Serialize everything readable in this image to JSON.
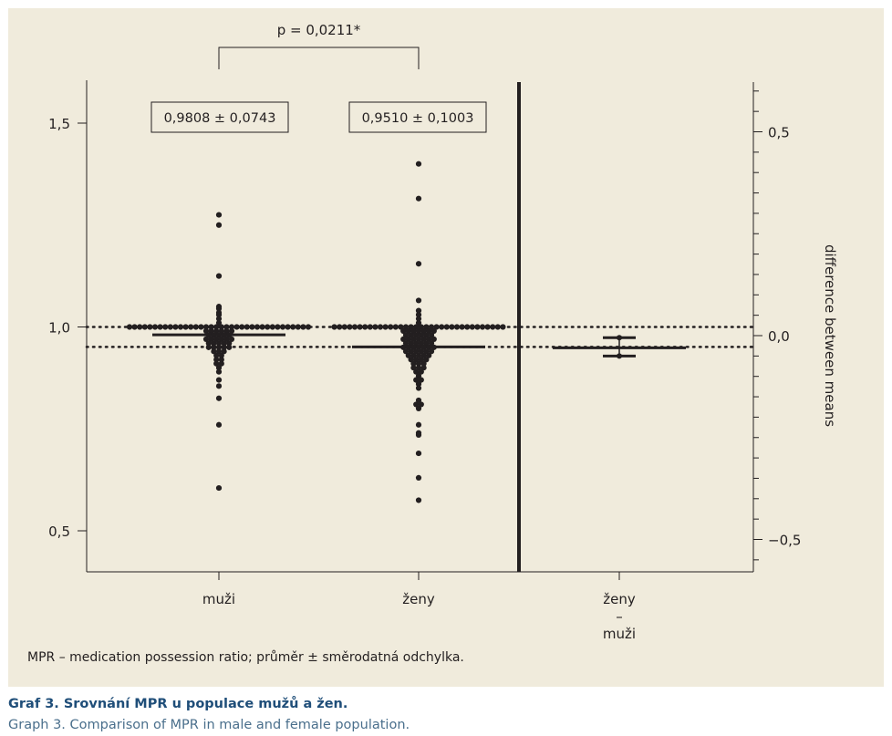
{
  "chart_data": {
    "type": "scatter",
    "significance": "p = 0,0211*",
    "left_axis": {
      "range": [
        0.4,
        1.61
      ],
      "ticks": [
        {
          "value": 0.5,
          "label": "0,5"
        },
        {
          "value": 1.0,
          "label": "1,0"
        },
        {
          "value": 1.5,
          "label": "1,5"
        }
      ]
    },
    "right_axis": {
      "label": "difference between means",
      "range": [
        -0.58,
        0.62
      ],
      "ticks": [
        {
          "value": -0.5,
          "label": "−0,5"
        },
        {
          "value": 0.0,
          "label": "0,0"
        },
        {
          "value": 0.5,
          "label": "0,5"
        }
      ]
    },
    "categories": [
      "muži",
      "ženy",
      "ženy – muži"
    ],
    "groups": [
      {
        "category": "muži",
        "mean_label": "0,9808 ± 0,0743",
        "mean": 0.9808,
        "sd": 0.0743,
        "values": [
          1.275,
          1.25,
          1.125,
          1.05,
          1.045,
          1.035,
          1.03,
          1.02,
          1.01,
          1.0,
          1.0,
          1.0,
          1.0,
          1.0,
          1.0,
          1.0,
          1.0,
          1.0,
          1.0,
          1.0,
          1.0,
          1.0,
          1.0,
          1.0,
          1.0,
          1.0,
          1.0,
          1.0,
          1.0,
          1.0,
          1.0,
          1.0,
          1.0,
          1.0,
          1.0,
          1.0,
          1.0,
          1.0,
          1.0,
          1.0,
          1.0,
          1.0,
          1.0,
          1.0,
          1.0,
          0.99,
          0.99,
          0.99,
          0.99,
          0.99,
          0.99,
          0.98,
          0.98,
          0.98,
          0.98,
          0.98,
          0.97,
          0.97,
          0.97,
          0.97,
          0.97,
          0.97,
          0.96,
          0.96,
          0.96,
          0.96,
          0.96,
          0.95,
          0.95,
          0.95,
          0.95,
          0.95,
          0.94,
          0.94,
          0.94,
          0.93,
          0.93,
          0.92,
          0.92,
          0.91,
          0.91,
          0.9,
          0.89,
          0.87,
          0.855,
          0.825,
          0.76,
          0.605
        ]
      },
      {
        "category": "ženy",
        "mean_label": "0,9510 ± 0,1003",
        "mean": 0.951,
        "sd": 0.1003,
        "values": [
          1.4,
          1.315,
          1.155,
          1.065,
          1.04,
          1.03,
          1.02,
          1.01,
          1.0,
          1.0,
          1.0,
          1.0,
          1.0,
          1.0,
          1.0,
          1.0,
          1.0,
          1.0,
          1.0,
          1.0,
          1.0,
          1.0,
          1.0,
          1.0,
          1.0,
          1.0,
          1.0,
          1.0,
          1.0,
          1.0,
          1.0,
          1.0,
          1.0,
          1.0,
          1.0,
          1.0,
          1.0,
          1.0,
          1.0,
          1.0,
          1.0,
          1.0,
          0.99,
          0.99,
          0.99,
          0.99,
          0.99,
          0.99,
          0.99,
          0.98,
          0.98,
          0.98,
          0.98,
          0.98,
          0.98,
          0.97,
          0.97,
          0.97,
          0.97,
          0.97,
          0.97,
          0.97,
          0.96,
          0.96,
          0.96,
          0.96,
          0.96,
          0.96,
          0.95,
          0.95,
          0.95,
          0.95,
          0.95,
          0.95,
          0.95,
          0.94,
          0.94,
          0.94,
          0.94,
          0.94,
          0.94,
          0.93,
          0.93,
          0.93,
          0.93,
          0.93,
          0.92,
          0.92,
          0.92,
          0.92,
          0.91,
          0.91,
          0.91,
          0.9,
          0.9,
          0.9,
          0.89,
          0.89,
          0.88,
          0.87,
          0.87,
          0.86,
          0.85,
          0.82,
          0.81,
          0.81,
          0.8,
          0.76,
          0.74,
          0.735,
          0.69,
          0.63,
          0.575
        ]
      }
    ],
    "difference": {
      "category_lines": [
        "ženy",
        "–",
        "muži"
      ],
      "mean_diff": -0.0298,
      "ci": [
        -0.05,
        -0.005
      ]
    },
    "reference_lines": [
      1.0,
      0.9808,
      0.951
    ],
    "gridlines": false
  },
  "footnote": "MPR – medication possession ratio; průměr ± směrodatná odchylka.",
  "caption": {
    "title": "Graf 3. Srovnání MPR u populace mužů a žen.",
    "subtitle": "Graph 3. Comparison of MPR in male and female population."
  }
}
